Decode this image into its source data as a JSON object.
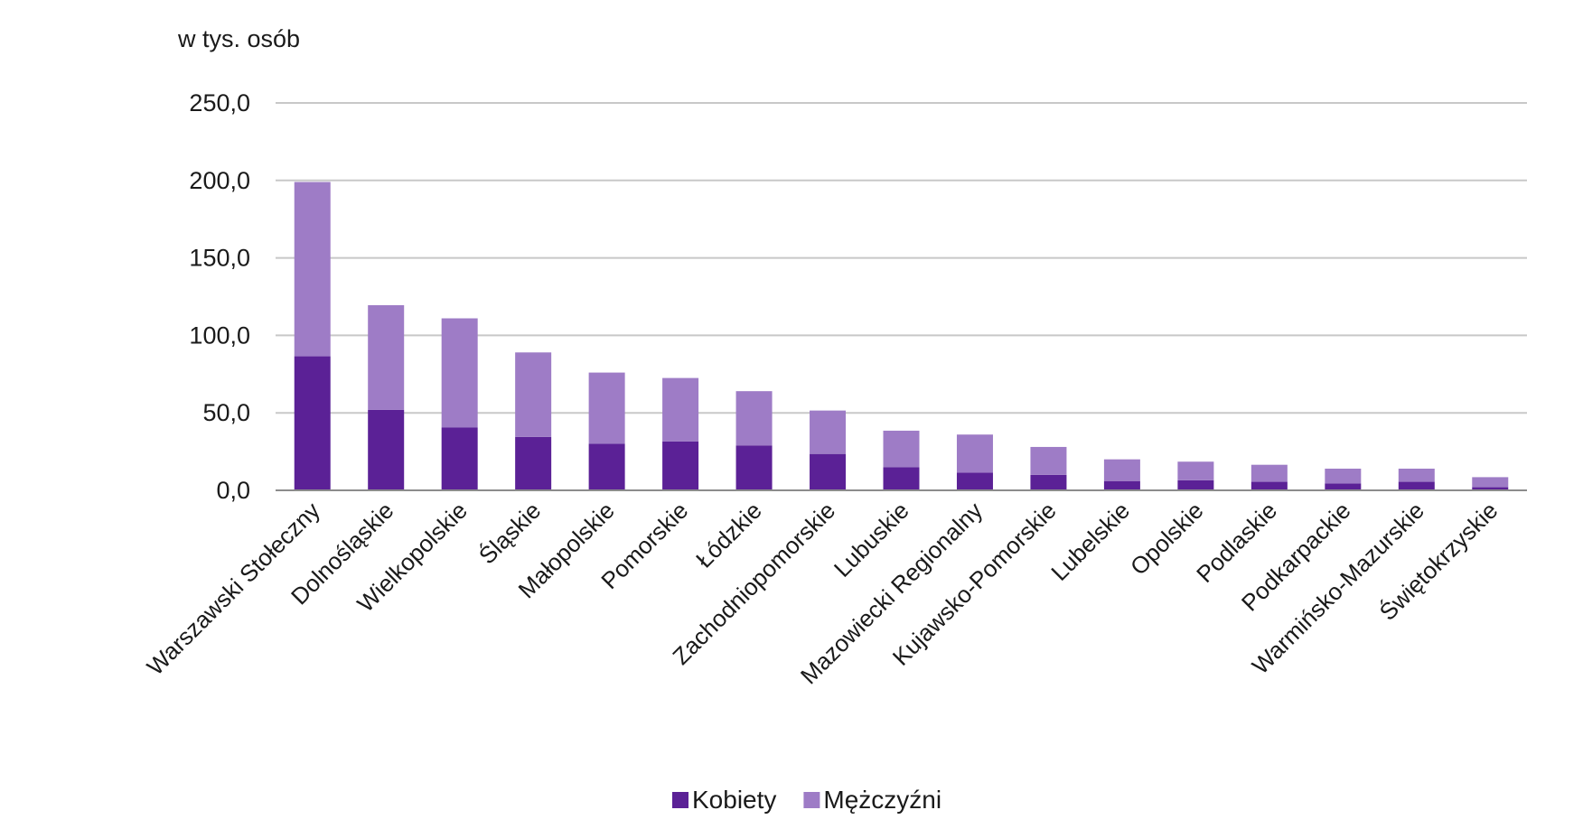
{
  "chart_data": {
    "type": "bar",
    "stacked": true,
    "ylabel": "w tys. osób",
    "ylim": [
      0,
      250
    ],
    "yticks": [
      0,
      50,
      100,
      150,
      200,
      250
    ],
    "ytick_labels": [
      "0,0",
      "50,0",
      "100,0",
      "150,0",
      "200,0",
      "250,0"
    ],
    "grid": true,
    "legend_position": "bottom",
    "categories": [
      "Warszawski Stołeczny",
      "Dolnośląskie",
      "Wielkopolskie",
      "Śląskie",
      "Małopolskie",
      "Pomorskie",
      "Łódzkie",
      "Zachodniopomorskie",
      "Lubuskie",
      "Mazowiecki Regionalny",
      "Kujawsko-Pomorskie",
      "Lubelskie",
      "Opolskie",
      "Podlaskie",
      "Podkarpackie",
      "Warmińsko-Mazurskie",
      "Świętokrzyskie"
    ],
    "series": [
      {
        "name": "Kobiety",
        "color": "#5b2196",
        "values": [
          86.5,
          52.0,
          40.5,
          34.5,
          30.0,
          31.5,
          29.0,
          23.5,
          15.0,
          11.5,
          10.0,
          6.0,
          6.5,
          5.5,
          4.5,
          5.5,
          2.0
        ]
      },
      {
        "name": "Mężczyźni",
        "color": "#9e7cc6",
        "values": [
          112.5,
          67.5,
          70.5,
          54.5,
          46.0,
          41.0,
          35.0,
          28.0,
          23.5,
          24.5,
          18.0,
          14.0,
          12.0,
          11.0,
          9.5,
          8.5,
          6.5
        ]
      }
    ]
  }
}
